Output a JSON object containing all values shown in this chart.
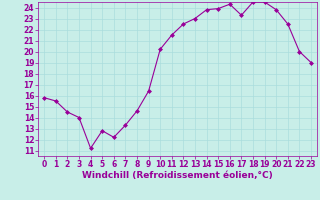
{
  "x": [
    0,
    1,
    2,
    3,
    4,
    5,
    6,
    7,
    8,
    9,
    10,
    11,
    12,
    13,
    14,
    15,
    16,
    17,
    18,
    19,
    20,
    21,
    22,
    23
  ],
  "y": [
    15.8,
    15.5,
    14.5,
    14.0,
    11.2,
    12.8,
    12.2,
    13.3,
    14.6,
    16.4,
    20.2,
    21.5,
    22.5,
    23.0,
    23.8,
    23.9,
    24.3,
    23.3,
    24.5,
    24.5,
    23.8,
    22.5,
    20.0,
    19.0
  ],
  "line_color": "#990099",
  "marker": "D",
  "marker_size": 2.0,
  "bg_color": "#c8eee8",
  "grid_color": "#aadddd",
  "xlabel": "Windchill (Refroidissement éolien,°C)",
  "xlabel_color": "#990099",
  "ylim": [
    10.5,
    24.5
  ],
  "xlim": [
    -0.5,
    23.5
  ],
  "yticks": [
    11,
    12,
    13,
    14,
    15,
    16,
    17,
    18,
    19,
    20,
    21,
    22,
    23,
    24
  ],
  "xticks": [
    0,
    1,
    2,
    3,
    4,
    5,
    6,
    7,
    8,
    9,
    10,
    11,
    12,
    13,
    14,
    15,
    16,
    17,
    18,
    19,
    20,
    21,
    22,
    23
  ],
  "tick_color": "#990099",
  "tick_fontsize": 5.5,
  "xlabel_fontsize": 6.5,
  "line_width": 0.8,
  "spine_color": "#990099"
}
